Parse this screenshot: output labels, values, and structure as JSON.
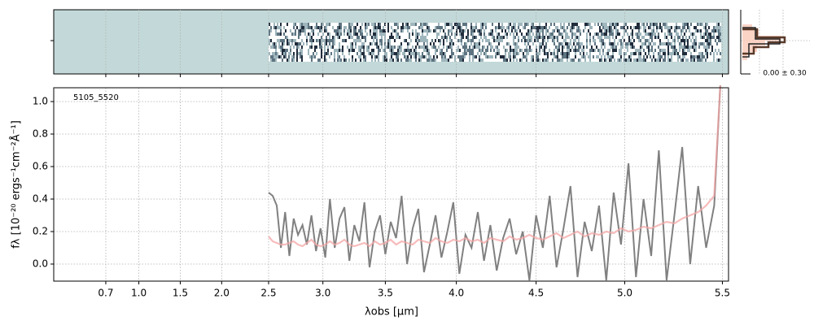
{
  "chart_data": {
    "type": "line",
    "annotation": "5105_5520",
    "side_label": "0.00 ± 0.30",
    "xlabel": "λobs [μm]",
    "ylabel": "fλ [10⁻²⁰ ergs⁻¹cm⁻²Å⁻¹]",
    "xscale": "prism",
    "xlim": [
      0.44,
      5.53
    ],
    "ylim": [
      -0.105,
      1.085
    ],
    "xticks": [
      0.7,
      {
        "value": 1.0,
        "label": "1.0"
      },
      1.5,
      {
        "value": 2.0,
        "label": "2.0"
      },
      2.5,
      {
        "value": 3.0,
        "label": "3.0"
      },
      3.5,
      {
        "value": 4.0,
        "label": "4.0"
      },
      4.5,
      {
        "value": 5.0,
        "label": "5.0"
      },
      5.5
    ],
    "yticks": [
      {
        "value": 0.0,
        "label": "0.0"
      },
      0.2,
      0.4,
      0.6,
      0.8,
      {
        "value": 1.0,
        "label": "1.0"
      }
    ],
    "grid": true,
    "x": [
      2.5,
      2.54,
      2.58,
      2.62,
      2.66,
      2.7,
      2.74,
      2.78,
      2.82,
      2.86,
      2.9,
      2.94,
      2.98,
      3.02,
      3.06,
      3.1,
      3.14,
      3.18,
      3.22,
      3.26,
      3.3,
      3.34,
      3.38,
      3.42,
      3.46,
      3.5,
      3.54,
      3.58,
      3.62,
      3.66,
      3.7,
      3.74,
      3.78,
      3.82,
      3.86,
      3.9,
      3.94,
      3.98,
      4.02,
      4.06,
      4.1,
      4.14,
      4.18,
      4.22,
      4.26,
      4.3,
      4.34,
      4.38,
      4.42,
      4.46,
      4.5,
      4.54,
      4.58,
      4.62,
      4.66,
      4.7,
      4.74,
      4.78,
      4.82,
      4.86,
      4.9,
      4.94,
      4.98,
      5.02,
      5.06,
      5.1,
      5.14,
      5.18,
      5.22,
      5.26,
      5.3,
      5.34,
      5.38,
      5.42,
      5.46,
      5.49
    ],
    "series": [
      {
        "color": "#808080",
        "values": [
          0.44,
          0.42,
          0.36,
          0.1,
          0.32,
          0.05,
          0.28,
          0.18,
          0.24,
          0.12,
          0.3,
          0.08,
          0.22,
          0.04,
          0.4,
          0.1,
          0.28,
          0.35,
          0.02,
          0.24,
          0.14,
          0.38,
          -0.02,
          0.2,
          0.3,
          0.06,
          0.26,
          0.16,
          0.42,
          0.0,
          0.22,
          0.34,
          -0.05,
          0.12,
          0.3,
          0.04,
          0.2,
          0.38,
          -0.06,
          0.18,
          0.1,
          0.32,
          0.02,
          0.24,
          -0.04,
          0.16,
          0.28,
          0.06,
          0.2,
          -0.1,
          0.3,
          0.1,
          0.42,
          -0.02,
          0.22,
          0.48,
          -0.08,
          0.26,
          0.08,
          0.36,
          -0.1,
          0.44,
          0.12,
          0.62,
          -0.08,
          0.4,
          0.05,
          0.7,
          -0.1,
          0.3,
          0.72,
          0.0,
          0.48,
          0.1,
          0.36,
          1.1
        ]
      },
      {
        "color": "#f4a6a6",
        "values": [
          0.17,
          0.14,
          0.13,
          0.12,
          0.12,
          0.13,
          0.14,
          0.12,
          0.11,
          0.13,
          0.15,
          0.12,
          0.11,
          0.12,
          0.14,
          0.12,
          0.13,
          0.15,
          0.12,
          0.11,
          0.12,
          0.13,
          0.11,
          0.14,
          0.12,
          0.13,
          0.15,
          0.12,
          0.14,
          0.13,
          0.12,
          0.15,
          0.14,
          0.13,
          0.16,
          0.14,
          0.13,
          0.15,
          0.14,
          0.16,
          0.14,
          0.15,
          0.13,
          0.16,
          0.15,
          0.14,
          0.17,
          0.15,
          0.16,
          0.18,
          0.16,
          0.15,
          0.17,
          0.19,
          0.16,
          0.18,
          0.2,
          0.17,
          0.19,
          0.18,
          0.2,
          0.19,
          0.22,
          0.2,
          0.21,
          0.23,
          0.22,
          0.24,
          0.26,
          0.25,
          0.28,
          0.3,
          0.32,
          0.36,
          0.42,
          1.1
        ]
      }
    ]
  }
}
